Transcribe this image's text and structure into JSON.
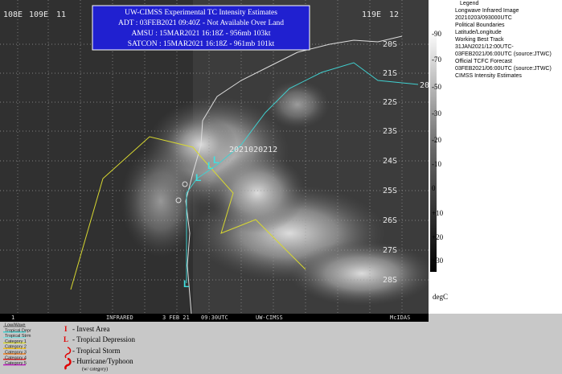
{
  "title_box": {
    "lines": [
      "UW-CIMSS Experimental TC Intensity Estimates",
      "ADT : 03FEB2021 09:40Z -  Not Available  Over Land",
      "AMSU : 15MAR2021 16:18Z -  956mb   103kt",
      "SATCON : 15MAR2021 16:18Z -  961mb   101kt"
    ]
  },
  "longitude_labels": [
    "108E",
    "109E",
    "11",
    "119E",
    "12"
  ],
  "latitude_labels": [
    "20S",
    "21S",
    "22S",
    "23S",
    "24S",
    "25S",
    "26S",
    "27S",
    "28S"
  ],
  "edge_label": "20",
  "track_label": "2021020212",
  "colorbar": {
    "labels": [
      "-90",
      "-70",
      "-50",
      "-30",
      "-20",
      "-10",
      "0",
      "+10",
      "+20",
      "+30"
    ],
    "unit": "degC"
  },
  "legend_panel": {
    "lines": [
      "Legend",
      "Longwave Infrared Image",
      "20210203/093000UTC",
      "Political Boundaries",
      "Latitude/Longitude",
      "Working Best Track",
      "31JAN2021/12:00UTC-",
      "03FEB2021/06:00UTC   (source:JTWC)",
      "Official TCFC Forecast",
      "03FEB2021/06:00UTC  (source:JTWC)",
      "CIMSS Intensity Estimates"
    ]
  },
  "status_bar": [
    "1",
    "INFRARED",
    "3 FEB 21",
    "09:30UTC",
    "UW-CIMSS",
    "McIDAS"
  ],
  "track_legend": [
    "Low/Wave",
    "Tropical Depr",
    "Tropical Strm",
    "Category 1",
    "Category 2",
    "Category 3",
    "Category 4",
    "Category 5"
  ],
  "symbol_legend": {
    "invest": {
      "symbol": "I",
      "label": "- Invest Area"
    },
    "depression": {
      "symbol": "L",
      "label": "- Tropical Depression"
    },
    "storm": "- Tropical Storm",
    "hurricane": "- Hurricane/Typhoon",
    "note": "(w/ category)"
  }
}
